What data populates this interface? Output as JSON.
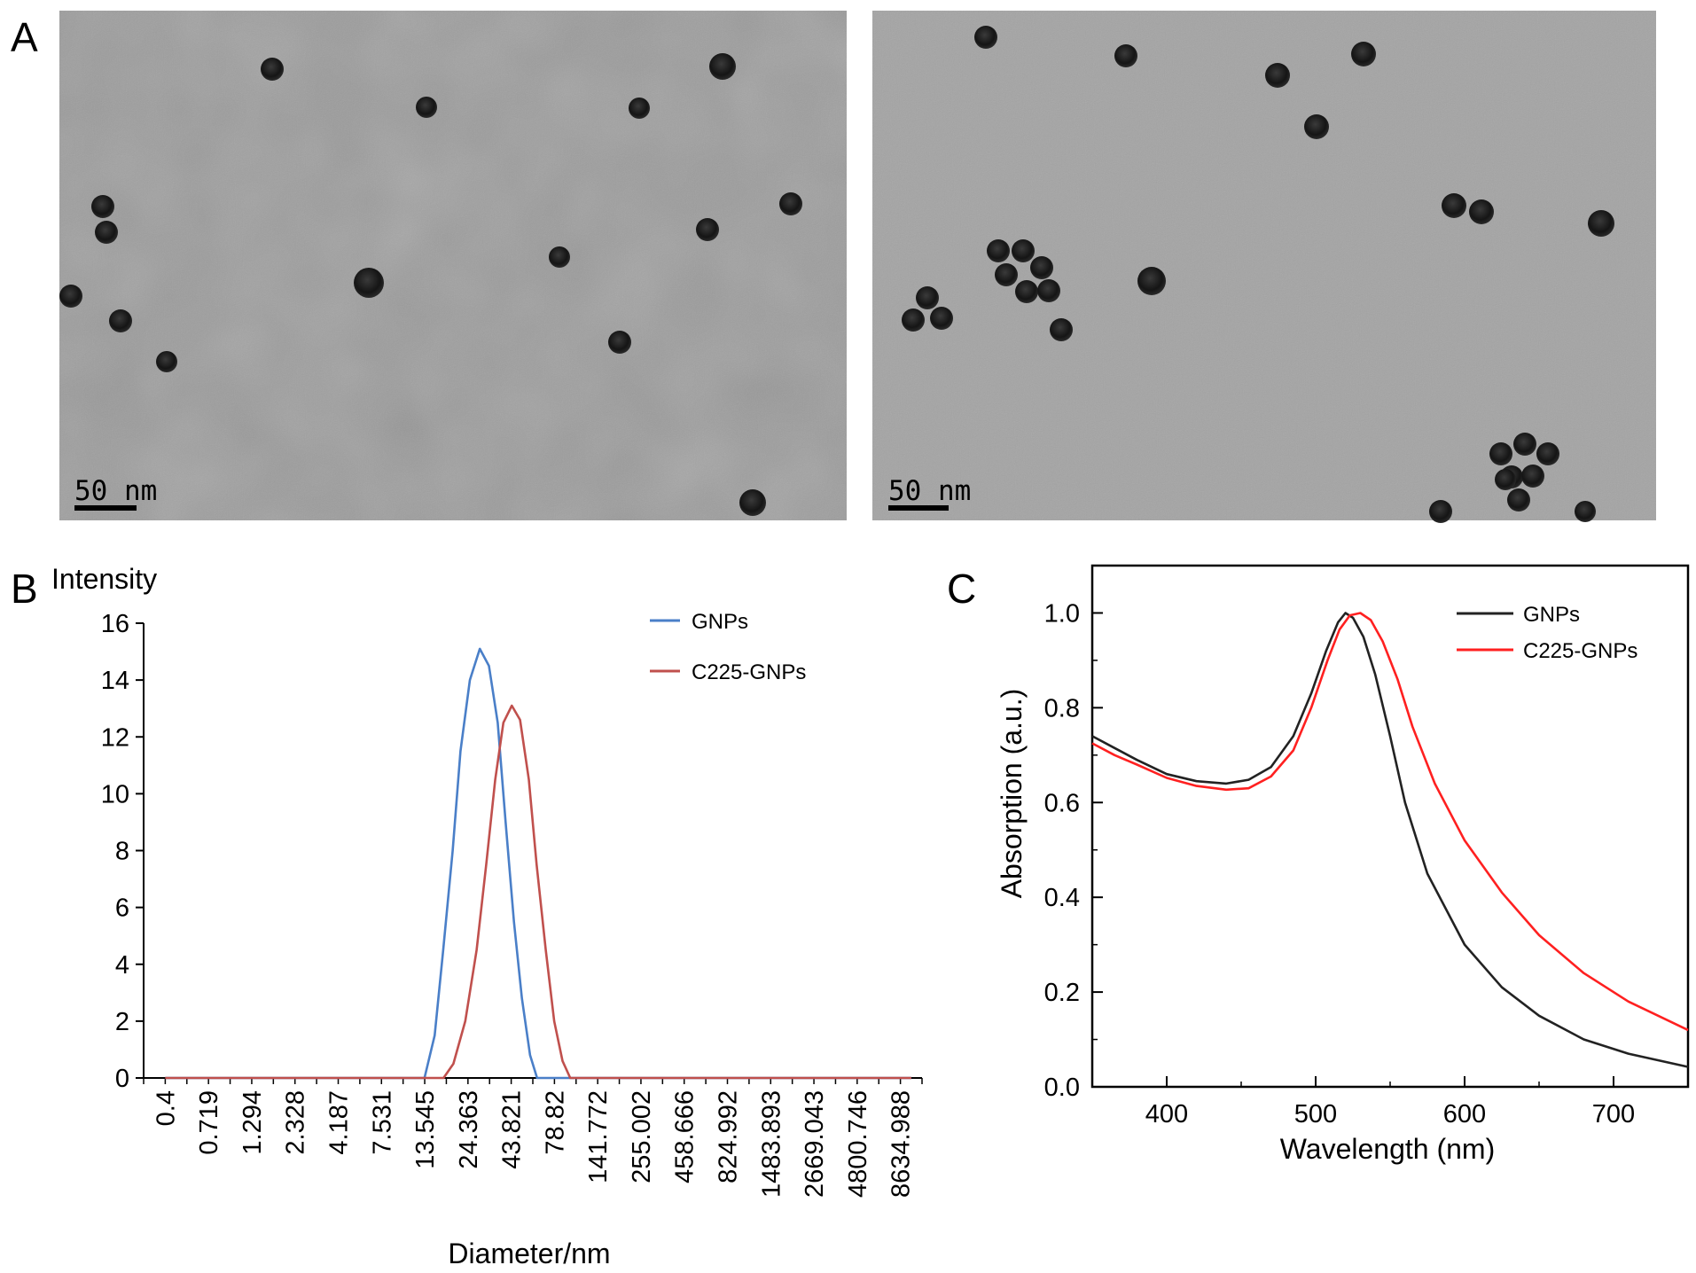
{
  "panels": {
    "A": {
      "letter": "A",
      "images": [
        {
          "scale_label": "50 nm"
        },
        {
          "scale_label": "50 nm"
        }
      ]
    },
    "B": {
      "letter": "B"
    },
    "C": {
      "letter": "C"
    }
  },
  "chart_data": [
    {
      "panel": "B",
      "type": "line",
      "title": "",
      "ylabel": "Intensity",
      "xlabel": "Diameter/nm",
      "ylim": [
        0,
        16
      ],
      "yticks": [
        0,
        2,
        4,
        6,
        8,
        10,
        12,
        14,
        16
      ],
      "x_scale": "log",
      "x_tick_labels": [
        "0.4",
        "0.719",
        "1.294",
        "2.328",
        "4.187",
        "7.531",
        "13.545",
        "24.363",
        "43.821",
        "78.82",
        "141.772",
        "255.002",
        "458.666",
        "824.992",
        "1483.893",
        "2669.043",
        "4800.746",
        "8634.988"
      ],
      "legend_position": "top-right",
      "series": [
        {
          "name": "GNPs",
          "color": "#4a7fc8",
          "points": [
            [
              0.4,
              0
            ],
            [
              13.5,
              0
            ],
            [
              15.5,
              1.5
            ],
            [
              17.4,
              4.5
            ],
            [
              19.8,
              8
            ],
            [
              22.0,
              11.5
            ],
            [
              25.0,
              14
            ],
            [
              28.6,
              15.1
            ],
            [
              32.4,
              14.5
            ],
            [
              36.5,
              12.5
            ],
            [
              40.6,
              9
            ],
            [
              45.5,
              5.5
            ],
            [
              50.7,
              2.8
            ],
            [
              56.6,
              0.8
            ],
            [
              62.3,
              0
            ],
            [
              10000,
              0
            ]
          ]
        },
        {
          "name": "C225-GNPs",
          "color": "#c0504d",
          "points": [
            [
              0.4,
              0
            ],
            [
              17.5,
              0
            ],
            [
              20.0,
              0.5
            ],
            [
              23.5,
              2
            ],
            [
              27.4,
              4.5
            ],
            [
              31.2,
              7.5
            ],
            [
              35.3,
              10.5
            ],
            [
              39.4,
              12.5
            ],
            [
              44.2,
              13.1
            ],
            [
              49.4,
              12.6
            ],
            [
              55.7,
              10.5
            ],
            [
              61.9,
              7.5
            ],
            [
              70.1,
              4.5
            ],
            [
              78.5,
              2
            ],
            [
              88.0,
              0.6
            ],
            [
              97.7,
              0
            ],
            [
              10000,
              0
            ]
          ]
        }
      ]
    },
    {
      "panel": "C",
      "type": "line",
      "title": "",
      "xlabel": "Wavelength (nm)",
      "ylabel": "Absorption (a.u.)",
      "xlim": [
        350,
        750
      ],
      "ylim": [
        0,
        1.1
      ],
      "xticks": [
        400,
        500,
        600,
        700
      ],
      "yticks": [
        0.0,
        0.2,
        0.4,
        0.6,
        0.8,
        1.0
      ],
      "ytick_labels": [
        "0.0",
        "0.2",
        "0.4",
        "0.6",
        "0.8",
        "1.0"
      ],
      "legend_position": "top-right",
      "series": [
        {
          "name": "GNPs",
          "color": "#222222",
          "points": [
            [
              350,
              0.74
            ],
            [
              365,
              0.715
            ],
            [
              380,
              0.69
            ],
            [
              400,
              0.66
            ],
            [
              420,
              0.645
            ],
            [
              440,
              0.64
            ],
            [
              455,
              0.648
            ],
            [
              470,
              0.675
            ],
            [
              485,
              0.74
            ],
            [
              497,
              0.83
            ],
            [
              507,
              0.92
            ],
            [
              515,
              0.98
            ],
            [
              520,
              1.0
            ],
            [
              525,
              0.99
            ],
            [
              532,
              0.95
            ],
            [
              540,
              0.87
            ],
            [
              550,
              0.74
            ],
            [
              560,
              0.6
            ],
            [
              575,
              0.45
            ],
            [
              600,
              0.3
            ],
            [
              625,
              0.21
            ],
            [
              650,
              0.15
            ],
            [
              680,
              0.1
            ],
            [
              710,
              0.07
            ],
            [
              750,
              0.042
            ]
          ]
        },
        {
          "name": "C225-GNPs",
          "color": "#ff2020",
          "points": [
            [
              350,
              0.725
            ],
            [
              365,
              0.7
            ],
            [
              380,
              0.68
            ],
            [
              400,
              0.652
            ],
            [
              420,
              0.635
            ],
            [
              440,
              0.627
            ],
            [
              455,
              0.63
            ],
            [
              470,
              0.655
            ],
            [
              485,
              0.71
            ],
            [
              497,
              0.8
            ],
            [
              508,
              0.9
            ],
            [
              516,
              0.965
            ],
            [
              523,
              0.995
            ],
            [
              530,
              1.0
            ],
            [
              537,
              0.985
            ],
            [
              545,
              0.94
            ],
            [
              555,
              0.86
            ],
            [
              565,
              0.76
            ],
            [
              580,
              0.64
            ],
            [
              600,
              0.52
            ],
            [
              625,
              0.41
            ],
            [
              650,
              0.32
            ],
            [
              680,
              0.24
            ],
            [
              710,
              0.18
            ],
            [
              750,
              0.12
            ]
          ]
        }
      ]
    }
  ]
}
